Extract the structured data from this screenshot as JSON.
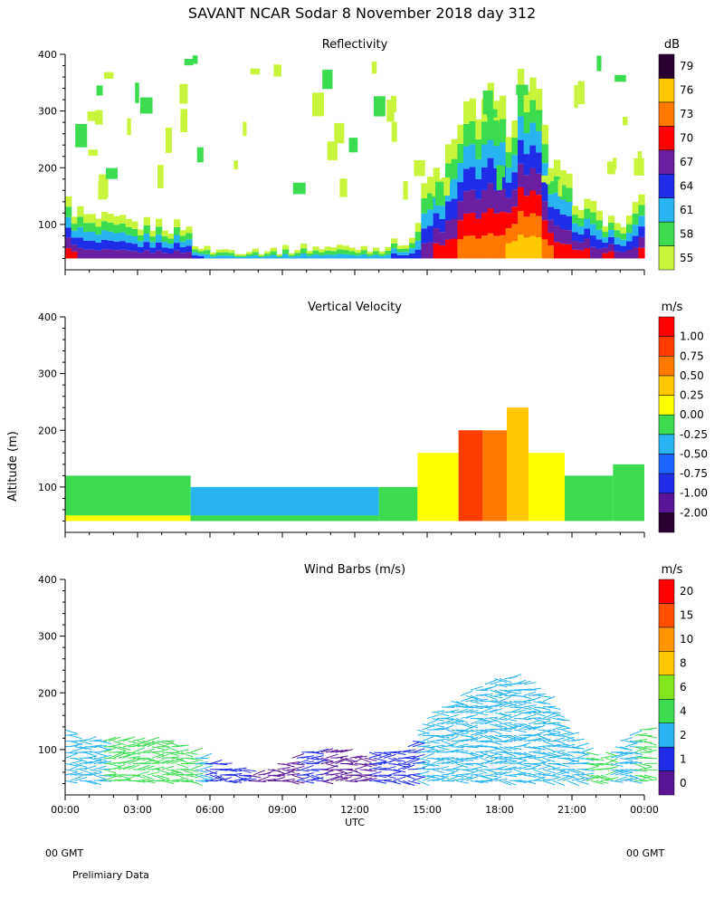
{
  "page_title": "SAVANT   NCAR Sodar   8 November 2018   day 312",
  "y_axis_title": "Altitude (m)",
  "footer": {
    "left_gmt": "00 GMT",
    "right_gmt": "00 GMT",
    "note": "Prelimiary Data"
  },
  "chart_data": [
    {
      "type": "heatmap",
      "title": "Reflectivity",
      "ylabel": "Altitude (m)",
      "xlabel": "",
      "xlim": [
        0,
        24
      ],
      "ylim": [
        20,
        400
      ],
      "yticks": [
        100,
        200,
        300,
        400
      ],
      "colorbar": {
        "unit": "dB",
        "levels": [
          "55",
          "58",
          "61",
          "64",
          "67",
          "70",
          "73",
          "76",
          "79"
        ],
        "colors": [
          "#c8f53c",
          "#3cdc50",
          "#28b4f0",
          "#1e2de6",
          "#6a1ea0",
          "#ff0000",
          "#ff7800",
          "#ffc800",
          "#2a0032"
        ]
      },
      "profile": {
        "hours": [
          0,
          1,
          2,
          3,
          4,
          4.5,
          5,
          5.5,
          6,
          7,
          8,
          9,
          10,
          11,
          12,
          13,
          14,
          14.5,
          15,
          15.5,
          16,
          16.5,
          17,
          17.5,
          18,
          18.5,
          19,
          19.5,
          20,
          20.5,
          21,
          21.5,
          22,
          22.5,
          23,
          23.5,
          24
        ],
        "top_altitude": [
          140,
          110,
          105,
          100,
          100,
          95,
          100,
          60,
          55,
          55,
          55,
          55,
          60,
          60,
          60,
          60,
          70,
          80,
          180,
          190,
          230,
          270,
          320,
          320,
          290,
          300,
          370,
          330,
          220,
          180,
          160,
          140,
          120,
          110,
          100,
          110,
          160
        ],
        "peak_level": [
          6,
          5,
          5,
          5,
          5,
          5,
          5,
          4,
          3,
          3,
          3,
          3,
          3,
          3,
          3,
          3,
          4,
          4,
          5,
          6,
          6,
          7,
          7,
          7,
          7,
          8,
          8,
          8,
          7,
          6,
          6,
          6,
          5,
          6,
          5,
          5,
          6
        ]
      }
    },
    {
      "type": "heatmap",
      "title": "Vertical Velocity",
      "ylabel": "Altitude (m)",
      "xlabel": "",
      "xlim": [
        0,
        24
      ],
      "ylim": [
        20,
        400
      ],
      "yticks": [
        100,
        200,
        300,
        400
      ],
      "colorbar": {
        "unit": "m/s",
        "levels": [
          "-2.00",
          "-1.00",
          "-0.75",
          "-0.50",
          "-0.25",
          "0.00",
          "0.25",
          "0.50",
          "0.75",
          "1.00"
        ],
        "colors": [
          "#2a0032",
          "#5a1496",
          "#1e2de6",
          "#1e64ff",
          "#28b4f0",
          "#3cdc50",
          "#ffff00",
          "#ffc800",
          "#ff7800",
          "#ff3c00",
          "#ff0000"
        ]
      },
      "bands": [
        {
          "from": 0,
          "to": 5.2,
          "top": 120,
          "value": -0.25
        },
        {
          "from": 5.2,
          "to": 13,
          "top": 100,
          "value": -0.5
        },
        {
          "from": 13,
          "to": 14.6,
          "top": 100,
          "value": -0.25
        },
        {
          "from": 14.6,
          "to": 16.3,
          "top": 160,
          "value": 0
        },
        {
          "from": 16.3,
          "to": 17.3,
          "top": 200,
          "value": 0.75
        },
        {
          "from": 17.3,
          "to": 18.3,
          "top": 200,
          "value": 0.5
        },
        {
          "from": 18.3,
          "to": 19.2,
          "top": 240,
          "value": 0.25
        },
        {
          "from": 19.2,
          "to": 20.7,
          "top": 160,
          "value": 0
        },
        {
          "from": 20.7,
          "to": 22.7,
          "top": 120,
          "value": -0.25
        },
        {
          "from": 22.7,
          "to": 24,
          "top": 140,
          "value": -0.25
        }
      ]
    },
    {
      "type": "scatter",
      "title": "Wind Barbs (m/s)",
      "ylabel": "Altitude (m)",
      "xlabel": "UTC",
      "xlim": [
        0,
        24
      ],
      "ylim": [
        20,
        400
      ],
      "yticks": [
        100,
        200,
        300,
        400
      ],
      "xticks": [
        "00:00",
        "03:00",
        "06:00",
        "09:00",
        "12:00",
        "15:00",
        "18:00",
        "21:00",
        "00:00"
      ],
      "colorbar": {
        "unit": "m/s",
        "levels": [
          "0",
          "1",
          "2",
          "4",
          "6",
          "8",
          "10",
          "15",
          "20"
        ],
        "colors": [
          "#5a1496",
          "#1e2de6",
          "#28b4f0",
          "#3cdc50",
          "#82e61e",
          "#ffc800",
          "#ff9600",
          "#ff5000",
          "#ff0000"
        ]
      },
      "profile": {
        "hours": [
          0,
          0.5,
          1,
          2,
          3,
          4,
          5,
          6,
          7,
          8,
          9,
          10,
          11,
          12,
          13,
          14,
          15,
          16,
          17,
          18,
          19,
          20,
          21,
          22,
          23,
          24
        ],
        "top_altitude": [
          140,
          120,
          120,
          120,
          120,
          120,
          100,
          80,
          70,
          60,
          80,
          100,
          100,
          90,
          100,
          100,
          160,
          190,
          210,
          230,
          220,
          180,
          120,
          80,
          120,
          140
        ],
        "speed_level": [
          2,
          2,
          2,
          3,
          3,
          3,
          3,
          1,
          1,
          0,
          0,
          1,
          0,
          0,
          1,
          1,
          2,
          2,
          2,
          2,
          2,
          2,
          2,
          3,
          2,
          3
        ]
      }
    }
  ]
}
